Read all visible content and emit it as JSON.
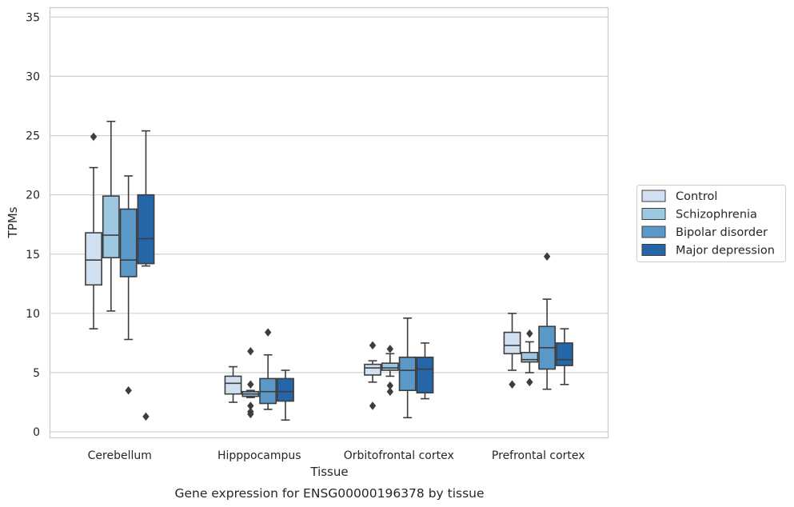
{
  "chart_data": {
    "type": "box",
    "xlabel": "Tissue",
    "ylabel": "TPMs",
    "caption": "Gene expression for ENSG00000196378 by tissue",
    "ylim": [
      -0.5,
      35.8
    ],
    "yticks": [
      0,
      5,
      10,
      15,
      20,
      25,
      30,
      35
    ],
    "grid": "horizontal",
    "legend_position": "right",
    "categories": [
      "Cerebellum",
      "Hipppocampus",
      "Orbitofrontal cortex",
      "Prefrontal cortex"
    ],
    "series": [
      {
        "name": "Control",
        "color": "#d1e0f0",
        "boxes": [
          {
            "whisker_low": 8.7,
            "q1": 12.4,
            "median": 14.5,
            "q3": 16.8,
            "whisker_high": 22.3,
            "outliers": [
              24.9
            ]
          },
          {
            "whisker_low": 2.5,
            "q1": 3.2,
            "median": 4.1,
            "q3": 4.7,
            "whisker_high": 5.5,
            "outliers": []
          },
          {
            "whisker_low": 4.2,
            "q1": 4.8,
            "median": 5.4,
            "q3": 5.7,
            "whisker_high": 6.0,
            "outliers": [
              7.3,
              2.2
            ]
          },
          {
            "whisker_low": 5.2,
            "q1": 6.6,
            "median": 7.3,
            "q3": 8.4,
            "whisker_high": 10.0,
            "outliers": [
              4.0
            ]
          }
        ]
      },
      {
        "name": "Schizophrenia",
        "color": "#9bc7e0",
        "boxes": [
          {
            "whisker_low": 10.2,
            "q1": 14.7,
            "median": 16.6,
            "q3": 19.9,
            "whisker_high": 26.2,
            "outliers": []
          },
          {
            "whisker_low": 2.9,
            "q1": 3.0,
            "median": 3.2,
            "q3": 3.4,
            "whisker_high": 3.5,
            "outliers": [
              6.8,
              4.0,
              2.2,
              1.7,
              1.5
            ]
          },
          {
            "whisker_low": 4.7,
            "q1": 5.2,
            "median": 5.4,
            "q3": 5.8,
            "whisker_high": 6.6,
            "outliers": [
              7.0,
              3.9,
              3.4
            ]
          },
          {
            "whisker_low": 5.0,
            "q1": 5.9,
            "median": 6.1,
            "q3": 6.7,
            "whisker_high": 7.6,
            "outliers": [
              8.3,
              4.2
            ]
          }
        ]
      },
      {
        "name": "Bipolar disorder",
        "color": "#5a98c8",
        "boxes": [
          {
            "whisker_low": 7.8,
            "q1": 13.1,
            "median": 14.5,
            "q3": 18.8,
            "whisker_high": 21.6,
            "outliers": [
              3.5
            ]
          },
          {
            "whisker_low": 1.9,
            "q1": 2.4,
            "median": 3.4,
            "q3": 4.5,
            "whisker_high": 6.5,
            "outliers": [
              8.4
            ]
          },
          {
            "whisker_low": 1.2,
            "q1": 3.5,
            "median": 5.2,
            "q3": 6.3,
            "whisker_high": 9.6,
            "outliers": []
          },
          {
            "whisker_low": 3.6,
            "q1": 5.3,
            "median": 7.1,
            "q3": 8.9,
            "whisker_high": 11.2,
            "outliers": [
              14.8
            ]
          }
        ]
      },
      {
        "name": "Major depression",
        "color": "#2466a8",
        "boxes": [
          {
            "whisker_low": 14.0,
            "q1": 14.2,
            "median": 16.3,
            "q3": 20.0,
            "whisker_high": 25.4,
            "outliers": [
              1.3
            ]
          },
          {
            "whisker_low": 1.0,
            "q1": 2.6,
            "median": 3.4,
            "q3": 4.5,
            "whisker_high": 5.2,
            "outliers": []
          },
          {
            "whisker_low": 2.8,
            "q1": 3.3,
            "median": 5.3,
            "q3": 6.3,
            "whisker_high": 7.5,
            "outliers": []
          },
          {
            "whisker_low": 4.0,
            "q1": 5.6,
            "median": 6.1,
            "q3": 7.5,
            "whisker_high": 8.7,
            "outliers": []
          }
        ]
      }
    ]
  }
}
